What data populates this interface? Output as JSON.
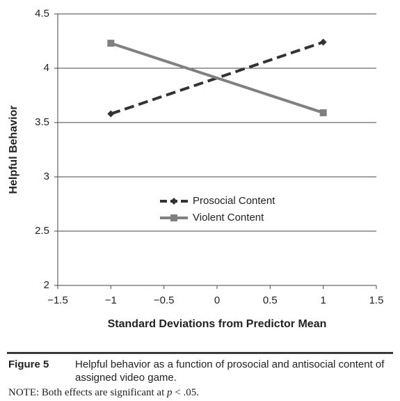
{
  "chart_data": {
    "type": "line",
    "xlabel": "Standard Deviations from Predictor Mean",
    "ylabel": "Helpful Behavior",
    "x": [
      -1,
      1
    ],
    "series": [
      {
        "name": "Prosocial Content",
        "color": "#333333",
        "line_style": "dashed",
        "marker": "diamond",
        "values": [
          3.58,
          4.24
        ]
      },
      {
        "name": "Violent Content",
        "color": "#808080",
        "line_style": "solid",
        "marker": "square",
        "values": [
          4.23,
          3.59
        ]
      }
    ],
    "xlim": [
      -1.5,
      1.5
    ],
    "xticks": [
      {
        "value": -1.5,
        "label": "−1.5"
      },
      {
        "value": -1,
        "label": "−1"
      },
      {
        "value": -0.5,
        "label": "−0.5"
      },
      0,
      0.5,
      1,
      1.5
    ],
    "ylim": [
      2,
      4.5
    ],
    "yticks": [
      2,
      2.5,
      3,
      3.5,
      4,
      4.5
    ],
    "grid": true,
    "legend": "center"
  },
  "caption": {
    "label": "Figure 5",
    "text": "Helpful behavior as a function of prosocial and antisocial content of assigned video game."
  },
  "note": {
    "prefix": "NOTE: Both effects are significant at",
    "italic": "p",
    "suffix": "< .05."
  }
}
